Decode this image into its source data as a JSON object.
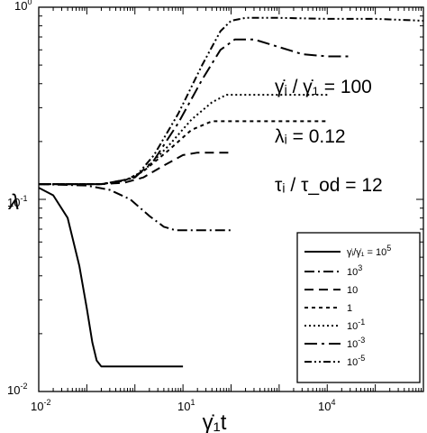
{
  "chart_data": {
    "type": "line",
    "x_scale": "log",
    "y_scale": "log",
    "xlim": [
      0.01,
      1000000
    ],
    "ylim": [
      0.01,
      1
    ],
    "xlabel": "γ̇₁t",
    "ylabel": "λ",
    "x_ticks": [
      {
        "base": "10",
        "exp": "-2",
        "value": 0.01
      },
      {
        "base": "10",
        "exp": "1",
        "value": 10
      },
      {
        "base": "10",
        "exp": "4",
        "value": 10000
      }
    ],
    "y_ticks": [
      {
        "base": "10",
        "exp": "-2",
        "value": 0.01
      },
      {
        "base": "10",
        "exp": "-1",
        "value": 0.1
      },
      {
        "base": "10",
        "exp": "0",
        "value": 1
      }
    ],
    "annotations": [
      {
        "id": "ratio",
        "text": "γ̇ᵢ / γ̇₁ = 100"
      },
      {
        "id": "lambda",
        "text": "λᵢ = 0.12"
      },
      {
        "id": "tau",
        "text": "τᵢ / τ_od = 12"
      }
    ],
    "legend": {
      "title": "γ̇ᵢ/γ̇₁ = 10⁵",
      "entries": [
        {
          "base": "10",
          "exp": "5",
          "prefix": "γ̇ᵢ/γ̇₁ = "
        },
        {
          "base": "10",
          "exp": "3"
        },
        {
          "base": "10",
          "exp": ""
        },
        {
          "base": "1",
          "exp": ""
        },
        {
          "base": "10",
          "exp": "-1"
        },
        {
          "base": "10",
          "exp": "-3"
        },
        {
          "base": "10",
          "exp": "-5"
        }
      ]
    },
    "series": [
      {
        "label_ref": 0,
        "dash": "",
        "width": 2,
        "points": [
          [
            0.01,
            0.115
          ],
          [
            0.02,
            0.105
          ],
          [
            0.04,
            0.08
          ],
          [
            0.07,
            0.045
          ],
          [
            0.1,
            0.027
          ],
          [
            0.13,
            0.018
          ],
          [
            0.16,
            0.0145
          ],
          [
            0.2,
            0.0135
          ],
          [
            0.5,
            0.0135
          ],
          [
            1,
            0.0135
          ],
          [
            10,
            0.0135
          ]
        ]
      },
      {
        "label_ref": 1,
        "dash": "11,4,2,4",
        "width": 2,
        "points": [
          [
            0.01,
            0.12
          ],
          [
            0.1,
            0.118
          ],
          [
            0.3,
            0.112
          ],
          [
            0.8,
            0.1
          ],
          [
            2,
            0.082
          ],
          [
            4,
            0.072
          ],
          [
            7,
            0.069
          ],
          [
            20,
            0.069
          ],
          [
            100,
            0.069
          ]
        ]
      },
      {
        "label_ref": 2,
        "dash": "10,6",
        "width": 2,
        "points": [
          [
            0.01,
            0.12
          ],
          [
            0.2,
            0.12
          ],
          [
            0.6,
            0.122
          ],
          [
            1.5,
            0.13
          ],
          [
            4,
            0.15
          ],
          [
            10,
            0.17
          ],
          [
            20,
            0.175
          ],
          [
            100,
            0.175
          ]
        ]
      },
      {
        "label_ref": 3,
        "dash": "4,4",
        "width": 2,
        "points": [
          [
            0.01,
            0.12
          ],
          [
            0.2,
            0.12
          ],
          [
            0.6,
            0.125
          ],
          [
            1.5,
            0.14
          ],
          [
            5,
            0.18
          ],
          [
            15,
            0.23
          ],
          [
            40,
            0.255
          ],
          [
            100,
            0.255
          ],
          [
            10000,
            0.255
          ]
        ]
      },
      {
        "label_ref": 4,
        "dash": "2,3",
        "width": 2,
        "points": [
          [
            0.01,
            0.12
          ],
          [
            0.2,
            0.12
          ],
          [
            0.6,
            0.125
          ],
          [
            1.5,
            0.14
          ],
          [
            5,
            0.19
          ],
          [
            15,
            0.26
          ],
          [
            40,
            0.32
          ],
          [
            80,
            0.35
          ],
          [
            200,
            0.35
          ],
          [
            1000,
            0.35
          ],
          [
            10000,
            0.35
          ]
        ]
      },
      {
        "label_ref": 5,
        "dash": "14,5,3,5",
        "width": 2,
        "points": [
          [
            0.01,
            0.12
          ],
          [
            0.2,
            0.12
          ],
          [
            0.5,
            0.125
          ],
          [
            1,
            0.13
          ],
          [
            2.5,
            0.16
          ],
          [
            8,
            0.25
          ],
          [
            25,
            0.42
          ],
          [
            60,
            0.6
          ],
          [
            120,
            0.68
          ],
          [
            300,
            0.68
          ],
          [
            1000,
            0.62
          ],
          [
            3000,
            0.57
          ],
          [
            10000,
            0.555
          ],
          [
            30000,
            0.555
          ]
        ]
      },
      {
        "label_ref": 6,
        "dash": "8,3,2,3,2,3",
        "width": 2,
        "points": [
          [
            0.01,
            0.12
          ],
          [
            0.2,
            0.12
          ],
          [
            0.5,
            0.125
          ],
          [
            1,
            0.13
          ],
          [
            2.5,
            0.17
          ],
          [
            8,
            0.28
          ],
          [
            25,
            0.5
          ],
          [
            60,
            0.75
          ],
          [
            100,
            0.85
          ],
          [
            200,
            0.88
          ],
          [
            1000,
            0.88
          ],
          [
            10000,
            0.87
          ],
          [
            100000,
            0.87
          ],
          [
            1000000,
            0.85
          ]
        ]
      }
    ]
  }
}
